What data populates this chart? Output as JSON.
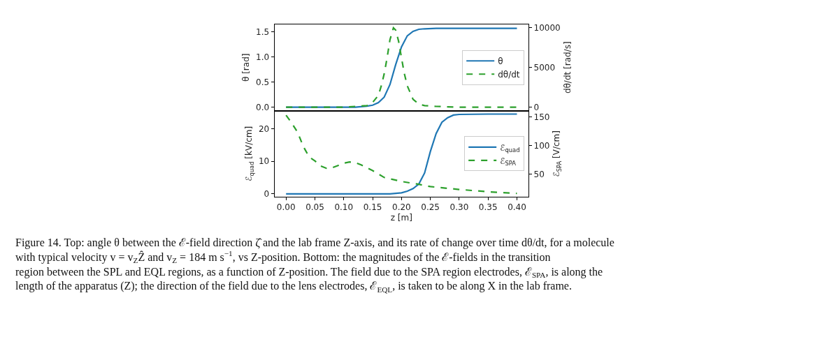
{
  "chart_data": [
    {
      "type": "line",
      "ylabel": "θ [rad]",
      "y2label": "dθ/dt [rad/s]",
      "xlim": [
        -0.02,
        0.42
      ],
      "ylim": [
        -0.073,
        1.652
      ],
      "yticks": [
        {
          "value": 0,
          "label": "0.0"
        },
        0.5,
        {
          "value": 1,
          "label": "1.0"
        },
        1.5
      ],
      "y2lim": [
        -460,
        10460
      ],
      "y2ticks": [
        0,
        5000,
        10000
      ],
      "tick_labels": "y",
      "legend": "center right",
      "grid": false,
      "marker": "none",
      "series": [
        {
          "name": "θ",
          "color": "#1f77b4",
          "line_style": "solid",
          "x": [
            0,
            0.05,
            0.1,
            0.12,
            0.14,
            0.15,
            0.16,
            0.17,
            0.18,
            0.19,
            0.2,
            0.21,
            0.22,
            0.23,
            0.24,
            0.26,
            0.3,
            0.35,
            0.4
          ],
          "values": [
            0,
            0,
            0,
            0,
            0.02,
            0.04,
            0.09,
            0.2,
            0.45,
            0.85,
            1.2,
            1.42,
            1.51,
            1.55,
            1.56,
            1.57,
            1.57,
            1.57,
            1.57
          ]
        },
        {
          "name": "dθ/dt",
          "color": "#2ca02c",
          "line_style": "dashed",
          "axis": "y2",
          "x": [
            0,
            0.05,
            0.1,
            0.12,
            0.14,
            0.15,
            0.16,
            0.165,
            0.17,
            0.175,
            0.18,
            0.186,
            0.19,
            0.195,
            0.2,
            0.205,
            0.21,
            0.22,
            0.23,
            0.24,
            0.26,
            0.3,
            0.4
          ],
          "values": [
            0,
            0,
            0,
            100,
            200,
            600,
            1500,
            2700,
            4200,
            6200,
            8500,
            10000,
            9700,
            8300,
            6200,
            4200,
            2700,
            1000,
            400,
            200,
            100,
            0,
            0
          ]
        }
      ]
    },
    {
      "type": "line",
      "xlabel": "z [m]",
      "ylabel": "ℰ$_{quad}$ [kV/cm]",
      "y2label": "ℰ$_{SPA}$ [V/cm]",
      "xlim": [
        -0.02,
        0.42
      ],
      "xticks": [
        {
          "value": 0,
          "label": "0.00"
        },
        0.05,
        {
          "value": 0.1,
          "label": "0.10"
        },
        0.15,
        {
          "value": 0.2,
          "label": "0.20"
        },
        0.25,
        {
          "value": 0.3,
          "label": "0.30"
        },
        0.35,
        {
          "value": 0.4,
          "label": "0.40"
        }
      ],
      "ylim": [
        -0.85,
        25.5
      ],
      "yticks": [
        0,
        10,
        20
      ],
      "y2lim": [
        10.5,
        160.6
      ],
      "y2ticks": [
        50,
        100,
        150
      ],
      "legend": "center right",
      "grid": false,
      "marker": "none",
      "series": [
        {
          "name": "ℰ$_{quad}$",
          "color": "#1f77b4",
          "line_style": "solid",
          "x": [
            0,
            0.1,
            0.18,
            0.2,
            0.21,
            0.22,
            0.23,
            0.24,
            0.25,
            0.26,
            0.27,
            0.28,
            0.29,
            0.3,
            0.35,
            0.4
          ],
          "values": [
            0,
            0,
            0,
            0.3,
            0.8,
            1.6,
            3.0,
            6.4,
            13,
            18.5,
            22,
            23.4,
            24.2,
            24.4,
            24.5,
            24.5
          ]
        },
        {
          "name": "ℰ$_{SPA}$",
          "color": "#2ca02c",
          "line_style": "dashed",
          "axis": "y2",
          "x": [
            0,
            0.01,
            0.02,
            0.03,
            0.04,
            0.05,
            0.06,
            0.07,
            0.08,
            0.09,
            0.1,
            0.11,
            0.12,
            0.13,
            0.15,
            0.17,
            0.2,
            0.23,
            0.25,
            0.3,
            0.35,
            0.4
          ],
          "values": [
            153,
            139,
            123,
            98,
            80,
            73,
            64,
            60,
            61,
            65,
            69,
            71,
            70,
            66,
            56,
            44,
            37,
            32,
            28,
            23,
            19,
            16
          ]
        }
      ],
      "annotations": [
        "Figure 14. Top: angle θ between the ℰ-field direction ζ̂ and the lab frame Z-axis, and its rate of change over time dθ/dt, for a molecule with typical velocity v = v$_{Z}$Ẑ and v$_{Z}$ = 184 m s$^{−1}$, vs Z-position. Bottom: the magnitudes of the ℰ-fields in the transition region between the SPL and EQL regions, as a function of Z-position. The field due to the SPA region electrodes, ℰ$_{SPA}$, is along the length of the apparatus (Z); the direction of the field due to the lens electrodes, ℰ$_{EQL}$, is taken to be along X in the lab frame."
      ]
    }
  ]
}
